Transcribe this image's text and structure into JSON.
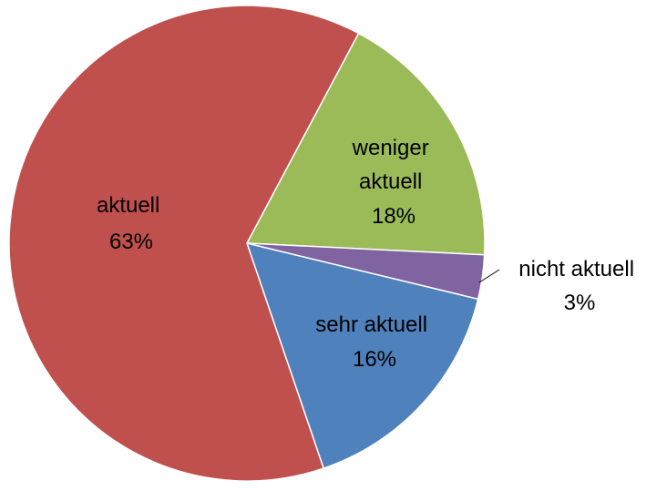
{
  "chart_data": {
    "type": "pie",
    "title": "",
    "slices": [
      {
        "label_lines": [
          "weniger",
          "aktuell"
        ],
        "percent_label": "18%",
        "value": 18,
        "color": "#9BBB59"
      },
      {
        "label_lines": [
          "nicht aktuell"
        ],
        "percent_label": "3%",
        "value": 3,
        "color": "#8064A2"
      },
      {
        "label_lines": [
          "sehr aktuell"
        ],
        "percent_label": "16%",
        "value": 16,
        "color": "#4F81BD"
      },
      {
        "label_lines": [
          "aktuell"
        ],
        "percent_label": "63%",
        "value": 63,
        "color": "#C0504D"
      }
    ],
    "legend": "none",
    "data_labels": "category-and-percent"
  }
}
